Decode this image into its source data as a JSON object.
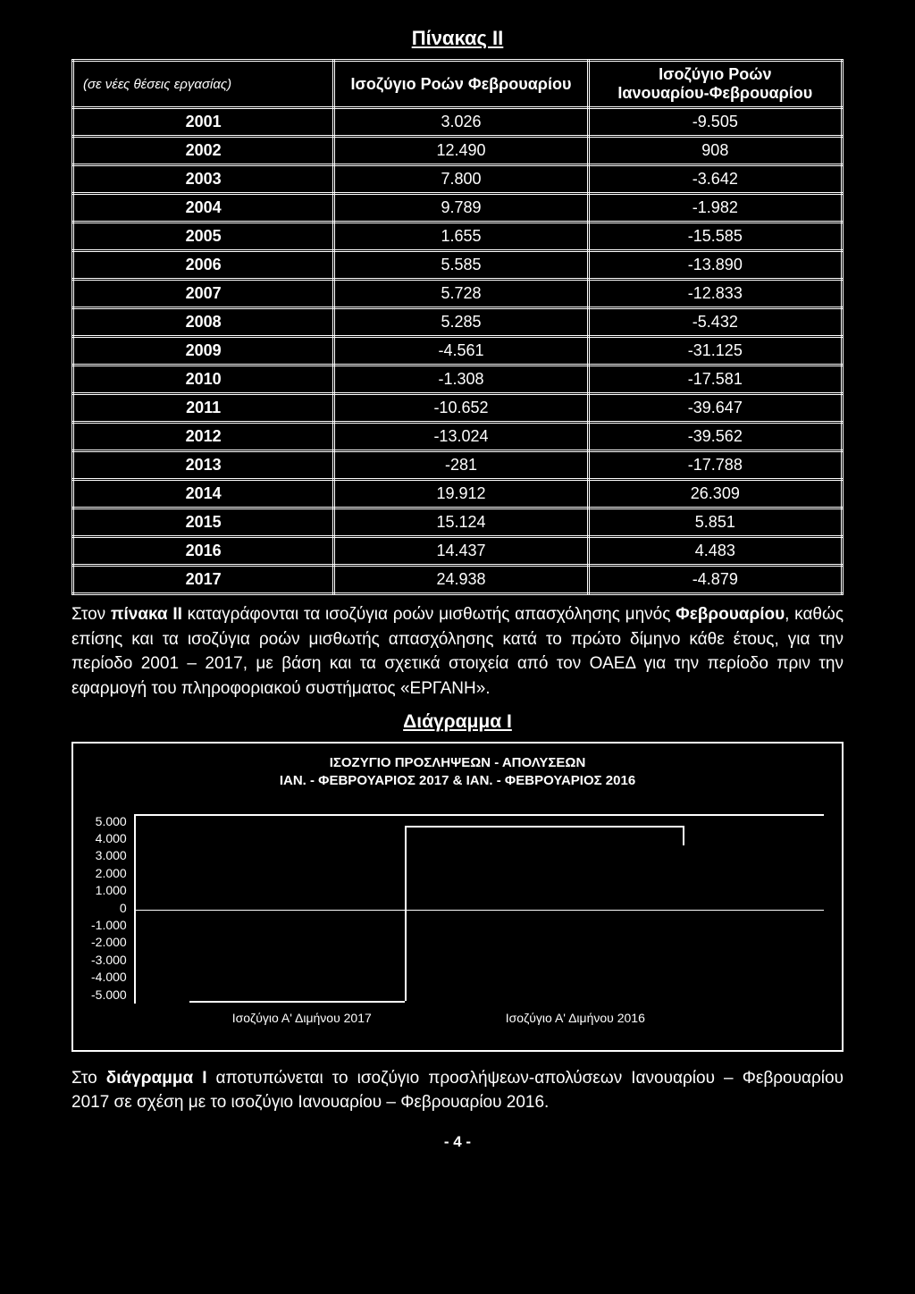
{
  "title": "Πίνακας II",
  "tableHeaders": {
    "note": "(σε νέες θέσεις εργασίας)",
    "col1": "Ισοζύγιο Ροών Φεβρουαρίου",
    "col2a": "Ισοζύγιο Ροών",
    "col2b": "Ιανουαρίου-Φεβρουαρίου"
  },
  "rows": [
    {
      "y": "2001",
      "a": "3.026",
      "b": "-9.505"
    },
    {
      "y": "2002",
      "a": "12.490",
      "b": "908"
    },
    {
      "y": "2003",
      "a": "7.800",
      "b": "-3.642"
    },
    {
      "y": "2004",
      "a": "9.789",
      "b": "-1.982"
    },
    {
      "y": "2005",
      "a": "1.655",
      "b": "-15.585"
    },
    {
      "y": "2006",
      "a": "5.585",
      "b": "-13.890"
    },
    {
      "y": "2007",
      "a": "5.728",
      "b": "-12.833"
    },
    {
      "y": "2008",
      "a": "5.285",
      "b": "-5.432"
    },
    {
      "y": "2009",
      "a": "-4.561",
      "b": "-31.125"
    },
    {
      "y": "2010",
      "a": "-1.308",
      "b": "-17.581"
    },
    {
      "y": "2011",
      "a": "-10.652",
      "b": "-39.647"
    },
    {
      "y": "2012",
      "a": "-13.024",
      "b": "-39.562"
    },
    {
      "y": "2013",
      "a": "-281",
      "b": "-17.788"
    },
    {
      "y": "2014",
      "a": "19.912",
      "b": "26.309"
    },
    {
      "y": "2015",
      "a": "15.124",
      "b": "5.851"
    },
    {
      "y": "2016",
      "a": "14.437",
      "b": "4.483"
    },
    {
      "y": "2017",
      "a": "24.938",
      "b": "-4.879"
    }
  ],
  "para1_a": "Στον ",
  "para1_b": "πίνακα II",
  "para1_c": " καταγράφονται τα ισοζύγια ροών μισθωτής απασχόλησης μηνός ",
  "para1_d": "Φεβρουαρίου",
  "para1_e": ", καθώς επίσης και τα ισοζύγια ροών μισθωτής απασχόλησης κατά το πρώτο δίμηνο κάθε έτους, για την περίοδο 2001 – 2017, με βάση και τα σχετικά στοιχεία από τον ΟΑΕΔ για την περίοδο πριν την εφαρμογή του πληροφοριακού συστήματος «ΕΡΓΑΝΗ».",
  "diagTitle": "Διάγραμμα Ι",
  "chartTitle1": "ΙΣΟΖΥΓΙΟ ΠΡΟΣΛΗΨΕΩΝ - ΑΠΟΛΥΣΕΩΝ",
  "chartTitle2": "ΙΑΝ. - ΦΕΒΡΟΥΑΡΙΟΣ 2017 & ΙΑΝ. - ΦΕΒΡΟΥΑΡΙΟΣ 2016",
  "chart": {
    "yticks": [
      "5.000",
      "4.000",
      "3.000",
      "2.000",
      "1.000",
      "0",
      "-1.000",
      "-2.000",
      "-3.000",
      "-4.000",
      "-5.000"
    ],
    "ylim": [
      -5000,
      5000
    ],
    "series": [
      {
        "label": "Ισοζύγιο Α' Διμήνου 2017",
        "value": -4879
      },
      {
        "label": "Ισοζύγιο Α' Διμήνου 2016",
        "value": 4483
      }
    ],
    "line_color": "#ffffff",
    "background_color": "#000000"
  },
  "para2_a": "Στο ",
  "para2_b": "διάγραμμα I",
  "para2_c": " αποτυπώνεται το ισοζύγιο προσλήψεων-απολύσεων Ιανουαρίου – Φεβρουαρίου 2017 σε σχέση με το ισοζύγιο Ιανουαρίου – Φεβρουαρίου 2016.",
  "pageNum": "- 4 -"
}
